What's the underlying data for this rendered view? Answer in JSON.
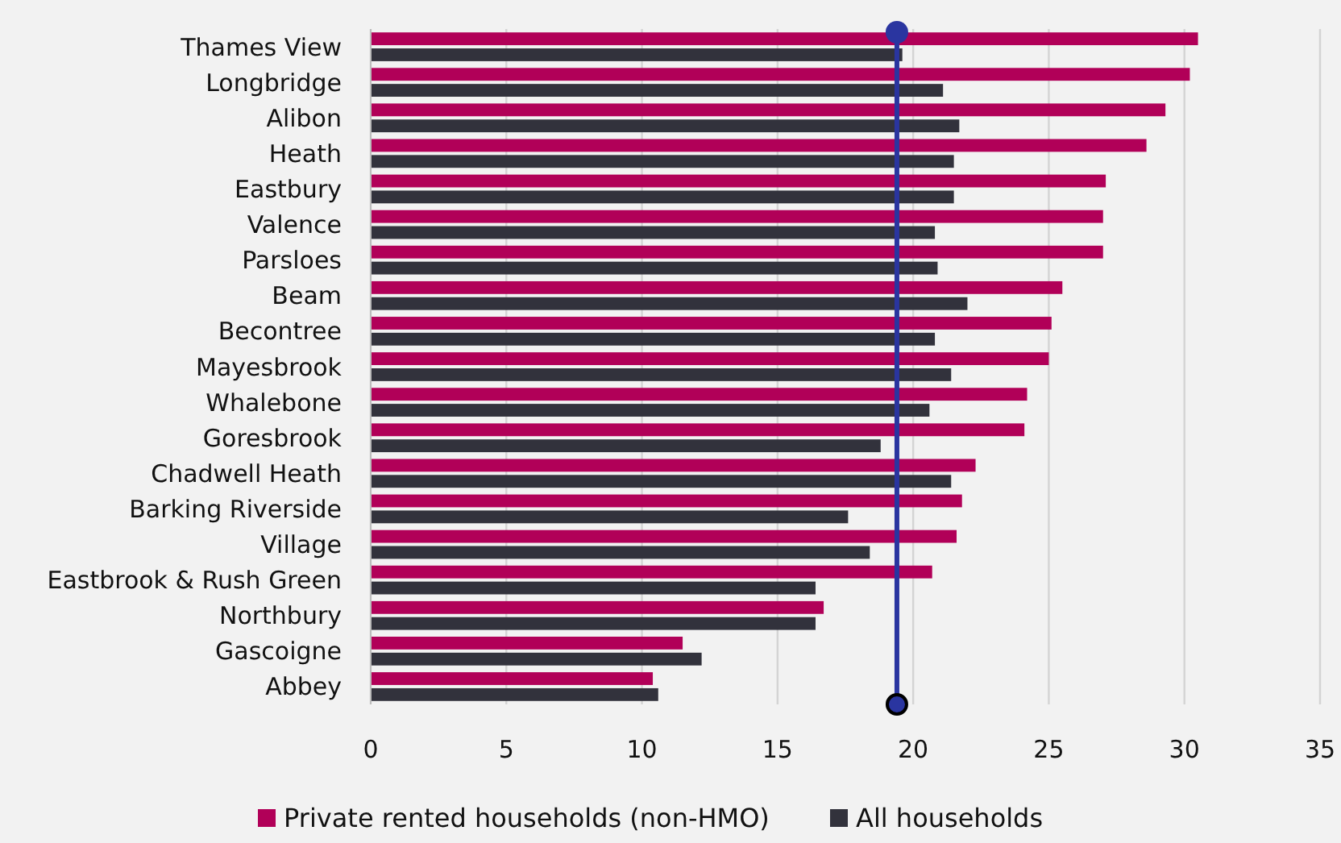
{
  "chart_data": {
    "type": "bar",
    "orientation": "horizontal",
    "categories": [
      "Thames View",
      "Longbridge",
      "Alibon",
      "Heath",
      "Eastbury",
      "Valence",
      "Parsloes",
      "Beam",
      "Becontree",
      "Mayesbrook",
      "Whalebone",
      "Goresbrook",
      "Chadwell Heath",
      "Barking Riverside",
      "Village",
      "Eastbrook & Rush Green",
      "Northbury",
      "Gascoigne",
      "Abbey"
    ],
    "series": [
      {
        "name": "Private rented households (non-HMO)",
        "color": "#b10058",
        "values": [
          30.5,
          30.2,
          29.3,
          28.6,
          27.1,
          27.0,
          27.0,
          25.5,
          25.1,
          25.0,
          24.2,
          24.1,
          22.3,
          21.8,
          21.6,
          20.7,
          16.7,
          11.5,
          10.4
        ]
      },
      {
        "name": "All households",
        "color": "#32323c",
        "values": [
          19.6,
          21.1,
          21.7,
          21.5,
          21.5,
          20.8,
          20.9,
          22.0,
          20.8,
          21.4,
          20.6,
          18.8,
          21.4,
          17.6,
          18.4,
          16.4,
          16.4,
          12.2,
          10.6
        ]
      }
    ],
    "xlim": [
      0,
      35
    ],
    "xticks": [
      0,
      5,
      10,
      15,
      20,
      25,
      30,
      35
    ],
    "ref_lines": [
      {
        "axis": "x",
        "value": 19.4,
        "color": "#2a35a0"
      }
    ],
    "grid": "x",
    "legend": "bottom"
  }
}
